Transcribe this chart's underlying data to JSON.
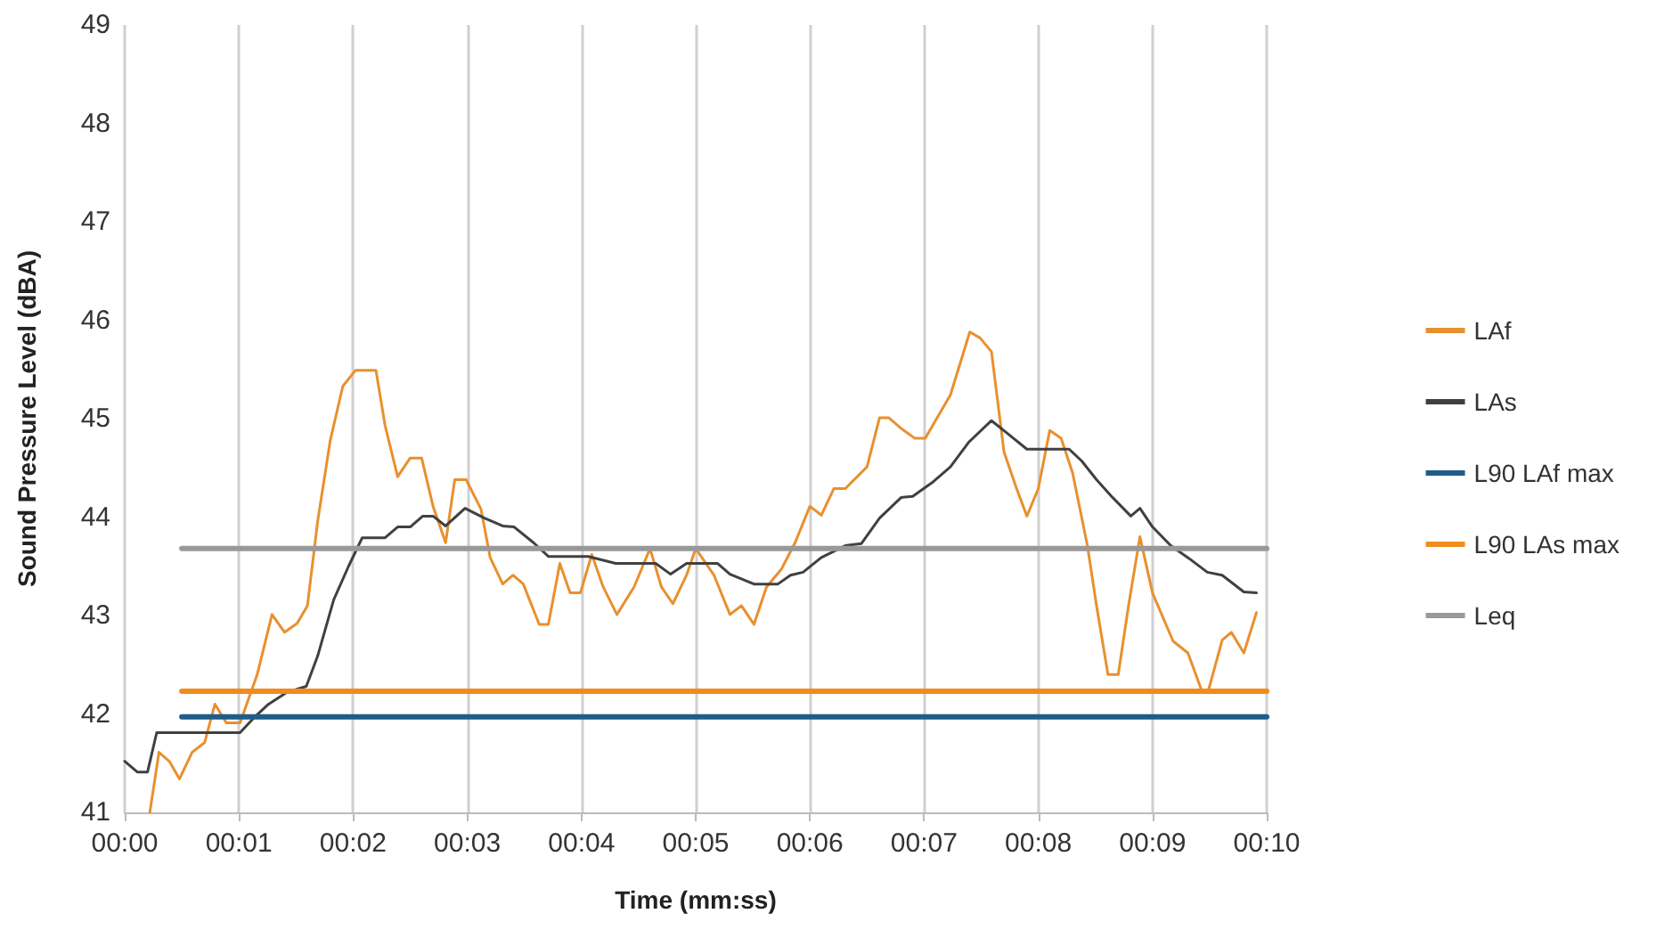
{
  "chart_data": {
    "type": "line",
    "xlabel": "Time (mm:ss)",
    "ylabel": "Sound Pressure Level (dBA)",
    "xlim": [
      0,
      10
    ],
    "xticks": [
      {
        "value": 0,
        "label": "00:00"
      },
      {
        "value": 1,
        "label": "00:01"
      },
      {
        "value": 2,
        "label": "00:02"
      },
      {
        "value": 3,
        "label": "00:03"
      },
      {
        "value": 4,
        "label": "00:04"
      },
      {
        "value": 5,
        "label": "00:05"
      },
      {
        "value": 6,
        "label": "00:06"
      },
      {
        "value": 7,
        "label": "00:07"
      },
      {
        "value": 8,
        "label": "00:08"
      },
      {
        "value": 9,
        "label": "00:09"
      },
      {
        "value": 10,
        "label": "00:10"
      }
    ],
    "ylim": [
      41,
      49
    ],
    "yticks": [
      41,
      42,
      43,
      44,
      45,
      46,
      47,
      48,
      49
    ],
    "grid": "x",
    "legend": "right",
    "marker": "none",
    "line_style": "solid",
    "series": [
      {
        "name": "LAf",
        "color": "#e8902f",
        "x": [
          0.22,
          0.3,
          0.39,
          0.48,
          0.59,
          0.7,
          0.79,
          0.89,
          1.01,
          1.16,
          1.29,
          1.4,
          1.51,
          1.6,
          1.69,
          1.8,
          1.91,
          2.02,
          2.2,
          2.28,
          2.39,
          2.5,
          2.6,
          2.7,
          2.81,
          2.89,
          2.99,
          3.12,
          3.2,
          3.31,
          3.4,
          3.49,
          3.63,
          3.71,
          3.81,
          3.9,
          3.99,
          4.09,
          4.19,
          4.31,
          4.46,
          4.6,
          4.7,
          4.8,
          4.92,
          5.0,
          5.16,
          5.3,
          5.4,
          5.51,
          5.62,
          5.75,
          5.87,
          6.0,
          6.1,
          6.21,
          6.31,
          6.5,
          6.61,
          6.69,
          6.8,
          6.92,
          7.01,
          7.12,
          7.23,
          7.4,
          7.49,
          7.59,
          7.7,
          7.81,
          7.9,
          8.0,
          8.1,
          8.2,
          8.3,
          8.43,
          8.51,
          8.61,
          8.7,
          8.79,
          8.89,
          9.0,
          9.18,
          9.31,
          9.43,
          9.49,
          9.61,
          9.69,
          9.8,
          9.91
        ],
        "values": [
          41.0,
          41.61,
          41.52,
          41.34,
          41.61,
          41.71,
          42.1,
          41.91,
          41.91,
          42.4,
          43.01,
          42.83,
          42.92,
          43.1,
          43.96,
          44.78,
          45.33,
          45.49,
          45.49,
          44.93,
          44.41,
          44.6,
          44.6,
          44.11,
          43.74,
          44.38,
          44.38,
          44.08,
          43.59,
          43.32,
          43.41,
          43.32,
          42.91,
          42.91,
          43.53,
          43.23,
          43.23,
          43.62,
          43.29,
          43.01,
          43.29,
          43.68,
          43.29,
          43.12,
          43.41,
          43.68,
          43.41,
          43.01,
          43.1,
          42.91,
          43.29,
          43.47,
          43.74,
          44.11,
          44.02,
          44.29,
          44.29,
          44.51,
          45.01,
          45.01,
          44.9,
          44.8,
          44.8,
          45.02,
          45.24,
          45.88,
          45.82,
          45.68,
          44.66,
          44.29,
          44.01,
          44.29,
          44.88,
          44.8,
          44.45,
          43.71,
          43.1,
          42.4,
          42.4,
          43.1,
          43.8,
          43.23,
          42.74,
          42.62,
          42.24,
          42.24,
          42.75,
          42.83,
          42.62,
          43.03
        ]
      },
      {
        "name": "LAs",
        "color": "#404040",
        "x": [
          0,
          0.11,
          0.2,
          0.28,
          1.01,
          1.13,
          1.26,
          1.42,
          1.59,
          1.69,
          1.83,
          1.96,
          2.08,
          2.28,
          2.39,
          2.5,
          2.61,
          2.7,
          2.81,
          2.98,
          3.15,
          3.31,
          3.41,
          3.58,
          3.71,
          4.06,
          4.3,
          4.65,
          4.78,
          4.92,
          5.19,
          5.3,
          5.51,
          5.72,
          5.83,
          5.94,
          6.1,
          6.31,
          6.45,
          6.61,
          6.8,
          6.9,
          7.07,
          7.23,
          7.39,
          7.59,
          7.74,
          7.9,
          8.27,
          8.38,
          8.51,
          8.65,
          8.81,
          8.89,
          9.0,
          9.16,
          9.32,
          9.48,
          9.61,
          9.8,
          9.91
        ],
        "values": [
          41.52,
          41.41,
          41.41,
          41.81,
          41.81,
          41.96,
          42.1,
          42.22,
          42.28,
          42.59,
          43.16,
          43.5,
          43.79,
          43.79,
          43.9,
          43.9,
          44.01,
          44.01,
          43.91,
          44.09,
          43.99,
          43.91,
          43.9,
          43.74,
          43.6,
          43.6,
          43.53,
          43.53,
          43.42,
          43.53,
          43.53,
          43.42,
          43.32,
          43.32,
          43.41,
          43.44,
          43.59,
          43.71,
          43.73,
          43.99,
          44.2,
          44.21,
          44.35,
          44.51,
          44.76,
          44.98,
          44.84,
          44.69,
          44.69,
          44.57,
          44.38,
          44.2,
          44.01,
          44.09,
          43.9,
          43.71,
          43.58,
          43.44,
          43.41,
          43.24,
          43.23
        ]
      },
      {
        "name": "L90 LAf max",
        "color": "#1f5c8a",
        "x": [
          0.5,
          10
        ],
        "values": [
          41.97,
          41.97
        ]
      },
      {
        "name": "L90 LAs max",
        "color": "#f08c1e",
        "x": [
          0.5,
          10
        ],
        "values": [
          42.23,
          42.23
        ]
      },
      {
        "name": "Leq",
        "color": "#999999",
        "x": [
          0.5,
          10
        ],
        "values": [
          43.68,
          43.68
        ]
      }
    ]
  }
}
